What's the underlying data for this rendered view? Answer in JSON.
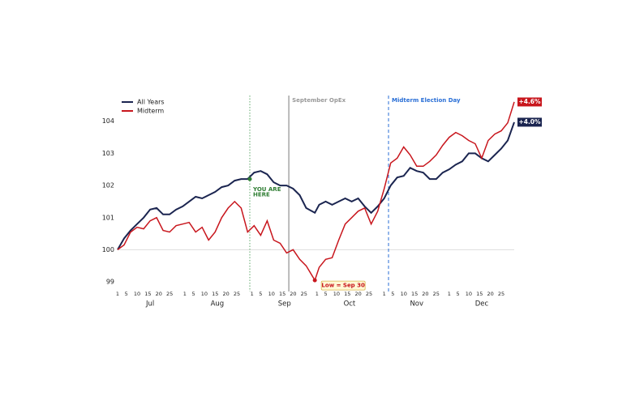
{
  "chart_data": {
    "type": "line",
    "x": [
      0,
      3,
      6,
      9,
      12,
      15,
      18,
      21,
      24,
      27,
      30,
      33,
      36,
      39,
      42,
      45,
      48,
      51,
      54,
      57,
      60,
      63,
      66,
      69,
      72,
      75,
      78,
      81,
      84,
      87,
      91,
      93,
      96,
      99,
      102,
      105,
      108,
      111,
      114,
      117,
      120,
      123,
      126,
      129,
      132,
      135,
      138,
      141,
      144,
      147,
      150,
      153,
      156,
      159,
      162,
      165,
      168,
      171,
      174,
      177,
      180,
      183
    ],
    "series": [
      {
        "name": "All Years",
        "color": "#1b2550",
        "end_label": "+4.0%",
        "values": [
          100.0,
          100.35,
          100.6,
          100.8,
          101.0,
          101.25,
          101.3,
          101.1,
          101.1,
          101.25,
          101.35,
          101.5,
          101.65,
          101.6,
          101.7,
          101.8,
          101.95,
          102.0,
          102.15,
          102.2,
          102.2,
          102.4,
          102.45,
          102.35,
          102.1,
          102.0,
          102.0,
          101.9,
          101.7,
          101.3,
          101.15,
          101.4,
          101.5,
          101.4,
          101.5,
          101.6,
          101.5,
          101.6,
          101.35,
          101.15,
          101.35,
          101.6,
          102.0,
          102.25,
          102.3,
          102.55,
          102.45,
          102.4,
          102.2,
          102.2,
          102.4,
          102.5,
          102.65,
          102.75,
          103.0,
          103.0,
          102.85,
          102.75,
          102.95,
          103.15,
          103.4,
          103.97
        ]
      },
      {
        "name": "Midterm",
        "color": "#c8161d",
        "end_label": "+4.6%",
        "values": [
          100.0,
          100.15,
          100.55,
          100.7,
          100.65,
          100.9,
          101.0,
          100.6,
          100.55,
          100.75,
          100.8,
          100.85,
          100.55,
          100.7,
          100.3,
          100.55,
          101.0,
          101.3,
          101.5,
          101.3,
          100.55,
          100.75,
          100.45,
          100.9,
          100.3,
          100.2,
          99.9,
          100.0,
          99.7,
          99.5,
          99.05,
          99.45,
          99.7,
          99.75,
          100.3,
          100.8,
          101.0,
          101.2,
          101.3,
          100.8,
          101.2,
          101.9,
          102.7,
          102.85,
          103.2,
          102.95,
          102.6,
          102.6,
          102.75,
          102.95,
          103.25,
          103.5,
          103.65,
          103.55,
          103.4,
          103.3,
          102.85,
          103.4,
          103.6,
          103.7,
          103.95,
          104.6
        ]
      }
    ],
    "xlim": [
      0,
      183
    ],
    "xticks": [
      {
        "value": 0,
        "label": "1"
      },
      {
        "value": 4,
        "label": "5"
      },
      {
        "value": 9,
        "label": "10"
      },
      {
        "value": 14,
        "label": "15"
      },
      {
        "value": 19,
        "label": "20"
      },
      {
        "value": 24,
        "label": "25"
      },
      {
        "value": 31,
        "label": "1"
      },
      {
        "value": 35,
        "label": "5"
      },
      {
        "value": 40,
        "label": "10"
      },
      {
        "value": 45,
        "label": "15"
      },
      {
        "value": 50,
        "label": "20"
      },
      {
        "value": 55,
        "label": "25"
      },
      {
        "value": 62,
        "label": "1"
      },
      {
        "value": 66,
        "label": "5"
      },
      {
        "value": 71,
        "label": "10"
      },
      {
        "value": 76,
        "label": "15"
      },
      {
        "value": 81,
        "label": "20"
      },
      {
        "value": 86,
        "label": "25"
      },
      {
        "value": 92,
        "label": "1"
      },
      {
        "value": 96,
        "label": "5"
      },
      {
        "value": 101,
        "label": "10"
      },
      {
        "value": 106,
        "label": "15"
      },
      {
        "value": 111,
        "label": "20"
      },
      {
        "value": 116,
        "label": "25"
      },
      {
        "value": 123,
        "label": "1"
      },
      {
        "value": 127,
        "label": "5"
      },
      {
        "value": 132,
        "label": "10"
      },
      {
        "value": 137,
        "label": "15"
      },
      {
        "value": 142,
        "label": "20"
      },
      {
        "value": 147,
        "label": "25"
      },
      {
        "value": 153,
        "label": "1"
      },
      {
        "value": 157,
        "label": "5"
      },
      {
        "value": 162,
        "label": "10"
      },
      {
        "value": 167,
        "label": "15"
      },
      {
        "value": 172,
        "label": "20"
      },
      {
        "value": 177,
        "label": "25"
      }
    ],
    "months": [
      {
        "value": 15,
        "label": "Jul"
      },
      {
        "value": 46,
        "label": "Aug"
      },
      {
        "value": 77,
        "label": "Sep"
      },
      {
        "value": 107,
        "label": "Oct"
      },
      {
        "value": 138,
        "label": "Nov"
      },
      {
        "value": 168,
        "label": "Dec"
      }
    ],
    "ylim": [
      98.7,
      104.8
    ],
    "yticks": [
      99,
      100,
      101,
      102,
      103,
      104
    ],
    "reference_line": 100,
    "legend": "upper left",
    "vlines": [
      {
        "x": 61,
        "color": "#5fa86b",
        "style": "dotted"
      },
      {
        "x": 79,
        "color": "#999999",
        "style": "solid",
        "label": "September OpEx"
      },
      {
        "x": 125,
        "color": "#2a6fd6",
        "style": "dashed",
        "label": "Midterm Election Day"
      }
    ],
    "you_are_here": {
      "x": 61,
      "y": 102.2,
      "lines": [
        "YOU ARE",
        "HERE"
      ],
      "color": "#2e7d32"
    },
    "low": {
      "x": 91,
      "y": 99.05,
      "label": "Low = Sep 30"
    }
  }
}
